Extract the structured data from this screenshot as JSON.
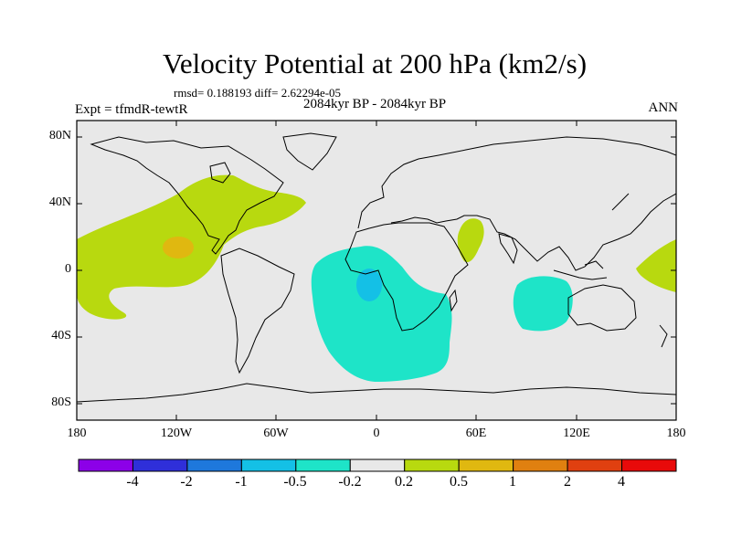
{
  "title": "Velocity Potential at 200 hPa (km2/s)",
  "stats": "rmsd= 0.188193 diff= 2.62294e-05",
  "experiment": "Expt = tfmdR-tewtR",
  "period": "2084kyr BP - 2084kyr BP",
  "season": "ANN",
  "axes": {
    "y_ticks": [
      {
        "label": "80N",
        "lat": 80
      },
      {
        "label": "40N",
        "lat": 40
      },
      {
        "label": "0",
        "lat": 0
      },
      {
        "label": "40S",
        "lat": -40
      },
      {
        "label": "80S",
        "lat": -80
      }
    ],
    "x_ticks": [
      {
        "label": "180",
        "lon": -180
      },
      {
        "label": "120W",
        "lon": -120
      },
      {
        "label": "60W",
        "lon": -60
      },
      {
        "label": "0",
        "lon": 0
      },
      {
        "label": "60E",
        "lon": 60
      },
      {
        "label": "120E",
        "lon": 120
      },
      {
        "label": "180",
        "lon": 180
      }
    ]
  },
  "colorbar": {
    "colors": [
      "#8c00e8",
      "#2f2fd9",
      "#1e78dc",
      "#14c0e6",
      "#1ee4c8",
      "#e8e8e8",
      "#b8d90f",
      "#e0b810",
      "#e08010",
      "#e04010",
      "#e80a0a"
    ],
    "labels": [
      "-4",
      "-2",
      "-1",
      "-0.5",
      "-0.2",
      "0.2",
      "0.5",
      "1",
      "2",
      "4"
    ]
  },
  "map": {
    "background_color": "#e8e8e8",
    "lon_range": [
      -180,
      180
    ],
    "lat_range": [
      -90,
      90
    ]
  }
}
